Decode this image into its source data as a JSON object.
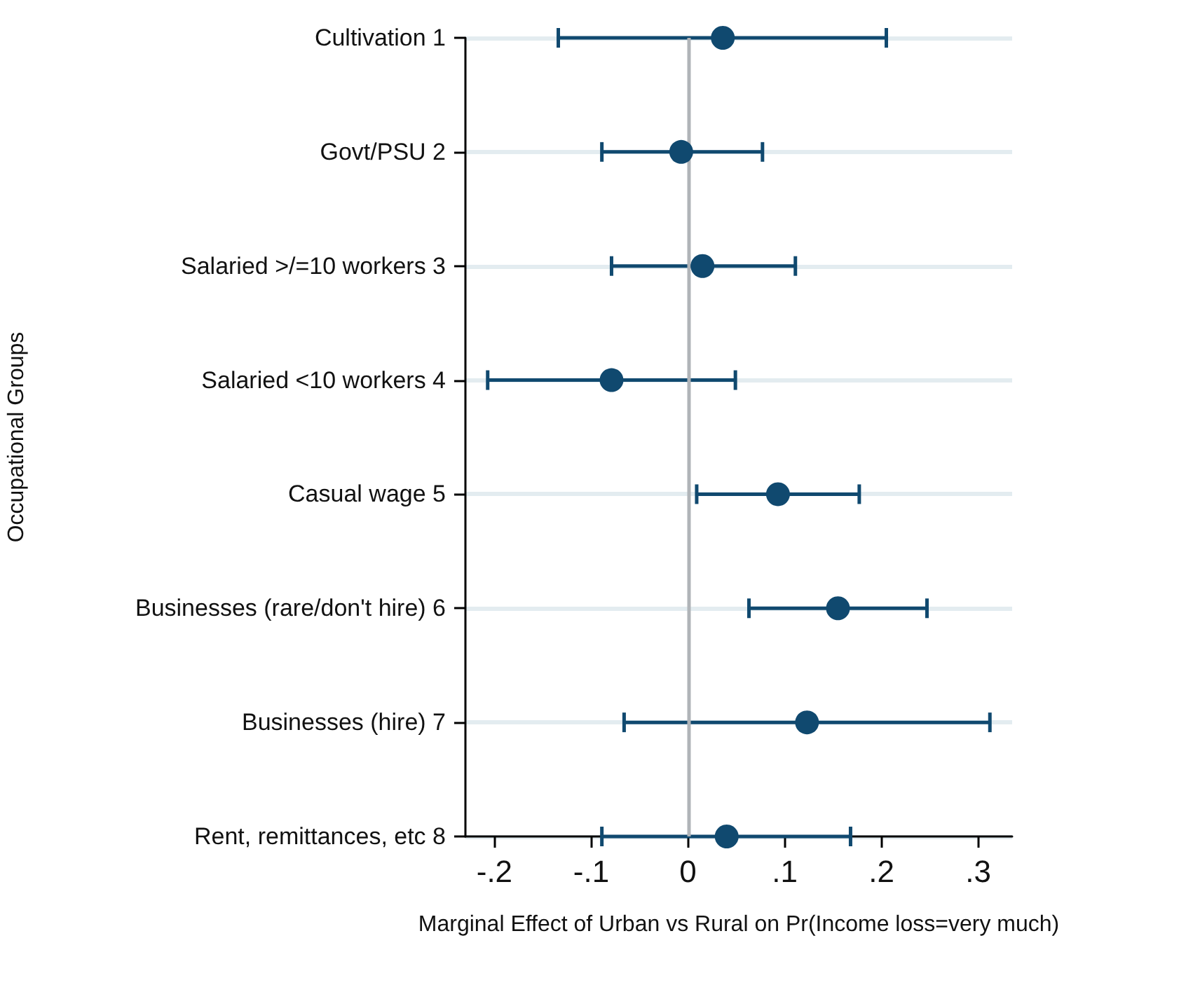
{
  "chart_data": {
    "type": "scatter",
    "orientation": "horizontal",
    "xlabel": "Marginal Effect of Urban vs Rural on Pr(Income loss=very much)",
    "ylabel": "Occupational Groups",
    "categories": [
      "Cultivation 1",
      "Govt/PSU 2",
      "Salaried >/=10 workers 3",
      "Salaried <10 workers 4",
      "Casual wage 5",
      "Businesses (rare/don't hire) 6",
      "Businesses (hire) 7",
      "Rent, remittances, etc 8"
    ],
    "series": [
      {
        "color": "#10496f",
        "values": [
          0.036,
          -0.007,
          0.015,
          -0.079,
          0.093,
          0.155,
          0.123,
          0.04
        ],
        "errors": [
          [
            -0.134,
            0.205
          ],
          [
            -0.089,
            0.077
          ],
          [
            -0.079,
            0.111
          ],
          [
            -0.207,
            0.049
          ],
          [
            0.009,
            0.177
          ],
          [
            0.063,
            0.247
          ],
          [
            -0.066,
            0.312
          ],
          [
            -0.089,
            0.168
          ]
        ]
      }
    ],
    "xlim": [
      -0.23,
      0.335
    ],
    "xticks": [
      {
        "value": -0.2,
        "label": "-.2"
      },
      {
        "value": -0.1,
        "label": "-.1"
      },
      0,
      {
        "value": 0.1,
        "label": ".1"
      },
      {
        "value": 0.2,
        "label": ".2"
      },
      {
        "value": 0.3,
        "label": ".3"
      }
    ],
    "ref_lines": [
      {
        "axis": "x",
        "value": 0,
        "color": "#b0b4b8"
      }
    ],
    "grid": "y",
    "marker": "circle"
  }
}
